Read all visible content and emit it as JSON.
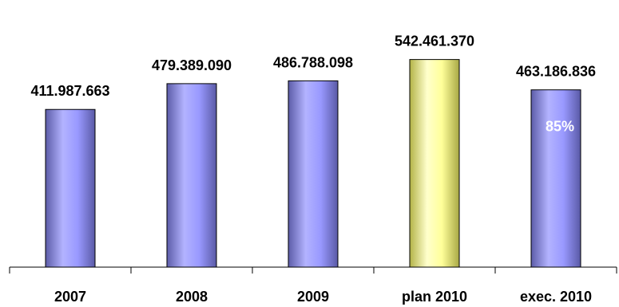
{
  "chart_data": {
    "type": "bar",
    "categories": [
      "2007",
      "2008",
      "2009",
      "plan 2010",
      "exec. 2010"
    ],
    "values": [
      411987663,
      479389090,
      486788098,
      542461370,
      463186836
    ],
    "value_labels": [
      "411.987.663",
      "479.389.090",
      "486.788.098",
      "542.461.370",
      "463.186.836"
    ],
    "bar_colors": [
      "#9999ff",
      "#9999ff",
      "#9999ff",
      "#ffff99",
      "#9999ff"
    ],
    "annotation": {
      "category": "exec. 2010",
      "text": "85%",
      "color": "#ffffff"
    },
    "title": "",
    "xlabel": "",
    "ylabel": "",
    "ylim": [
      0,
      600000000
    ],
    "grid": false,
    "legend": "none"
  }
}
